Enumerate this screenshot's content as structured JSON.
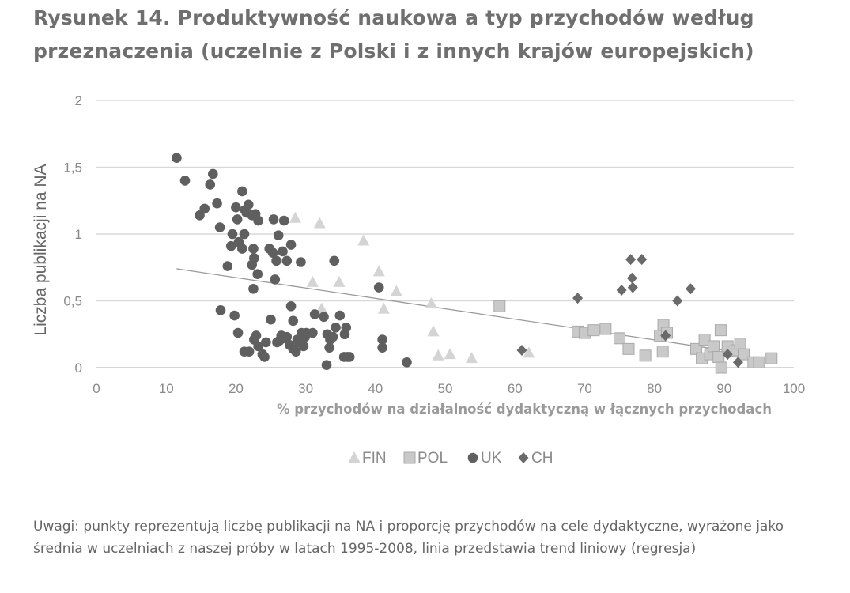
{
  "figure": {
    "title": "Rysunek 14. Produktywność naukowa a typ przychodów według przeznaczenia (uczelnie z Polski i z innych krajów europejskich)",
    "note": "Uwagi: punkty reprezentują liczbę publikacji na NA i proporcję przychodów na cele dydaktyczne, wyrażone jako średnia w uczelniach z naszej próby w latach 1995-2008, linia przedstawia trend liniowy (regresja)"
  },
  "chart_data": {
    "type": "scatter",
    "title": "",
    "xlabel": "% przychodów na działalność dydaktyczną w łącznych przychodach",
    "ylabel": "Liczba publikacji na NA",
    "xlim": [
      0,
      100
    ],
    "ylim": [
      0,
      2
    ],
    "xticks": [
      "0",
      "10",
      "20",
      "30",
      "40",
      "50",
      "60",
      "70",
      "80",
      "90",
      "100"
    ],
    "yticks": [
      "0",
      "0,5",
      "1",
      "1,5",
      "2"
    ],
    "grid": "horizontal",
    "legend_position": "bottom",
    "colors": {
      "FIN": "#d4d4d4",
      "POL": "#c9c9c9",
      "UK": "#5f5f5f",
      "CH": "#6a6a6a",
      "trend": "#9a9a9a",
      "grid": "#d9d9d9"
    },
    "series": [
      {
        "name": "FIN",
        "marker": "triangle",
        "points": [
          [
            28.5,
            1.12
          ],
          [
            32,
            1.08
          ],
          [
            38.3,
            0.95
          ],
          [
            40.5,
            0.72
          ],
          [
            43,
            0.57
          ],
          [
            41.2,
            0.44
          ],
          [
            31,
            0.64
          ],
          [
            34.8,
            0.64
          ],
          [
            32.3,
            0.44
          ],
          [
            48,
            0.48
          ],
          [
            48.3,
            0.27
          ],
          [
            49,
            0.09
          ],
          [
            50.7,
            0.1
          ],
          [
            53.8,
            0.07
          ],
          [
            62,
            0.11
          ]
        ]
      },
      {
        "name": "POL",
        "marker": "square",
        "points": [
          [
            57.8,
            0.46
          ],
          [
            69,
            0.27
          ],
          [
            70,
            0.26
          ],
          [
            71.3,
            0.28
          ],
          [
            73,
            0.29
          ],
          [
            75,
            0.22
          ],
          [
            76.3,
            0.14
          ],
          [
            78.7,
            0.09
          ],
          [
            80.8,
            0.24
          ],
          [
            81.3,
            0.32
          ],
          [
            81.8,
            0.26
          ],
          [
            81.2,
            0.12
          ],
          [
            86,
            0.14
          ],
          [
            86.8,
            0.07
          ],
          [
            87.2,
            0.21
          ],
          [
            88,
            0.1
          ],
          [
            88.5,
            0.16
          ],
          [
            89.2,
            0.08
          ],
          [
            89.5,
            0.28
          ],
          [
            89.6,
            0.0
          ],
          [
            90.5,
            0.16
          ],
          [
            91.2,
            0.12
          ],
          [
            91.8,
            0.13
          ],
          [
            92.3,
            0.18
          ],
          [
            92.8,
            0.1
          ],
          [
            94.2,
            0.04
          ],
          [
            95,
            0.04
          ],
          [
            96.8,
            0.07
          ]
        ]
      },
      {
        "name": "UK",
        "marker": "circle",
        "points": [
          [
            11.5,
            1.57
          ],
          [
            12.7,
            1.4
          ],
          [
            14.8,
            1.14
          ],
          [
            15.5,
            1.19
          ],
          [
            16.3,
            1.37
          ],
          [
            16.7,
            1.45
          ],
          [
            17.3,
            1.23
          ],
          [
            17.7,
            1.05
          ],
          [
            18.8,
            0.76
          ],
          [
            19.3,
            0.91
          ],
          [
            19.5,
            1.0
          ],
          [
            20.0,
            1.2
          ],
          [
            20.2,
            1.11
          ],
          [
            20.4,
            0.94
          ],
          [
            20.9,
            1.32
          ],
          [
            21.3,
            1.18
          ],
          [
            20.9,
            0.89
          ],
          [
            21.2,
            1.0
          ],
          [
            21.5,
            1.16
          ],
          [
            21.8,
            1.22
          ],
          [
            22.3,
            1.14
          ],
          [
            22.5,
            0.89
          ],
          [
            22.6,
            0.82
          ],
          [
            22.3,
            0.77
          ],
          [
            22.8,
            1.15
          ],
          [
            23.2,
            1.1
          ],
          [
            22.5,
            0.59
          ],
          [
            23.1,
            0.7
          ],
          [
            24.8,
            0.89
          ],
          [
            25.3,
            0.86
          ],
          [
            25.4,
            1.11
          ],
          [
            25.6,
            0.66
          ],
          [
            25.8,
            0.8
          ],
          [
            26.1,
            0.99
          ],
          [
            26.7,
            0.87
          ],
          [
            26.9,
            1.1
          ],
          [
            27.3,
            0.8
          ],
          [
            27.9,
            0.92
          ],
          [
            29.3,
            0.79
          ],
          [
            34.1,
            0.8
          ],
          [
            40.5,
            0.6
          ],
          [
            17.8,
            0.43
          ],
          [
            19.8,
            0.39
          ],
          [
            20.3,
            0.26
          ],
          [
            21.2,
            0.12
          ],
          [
            21.9,
            0.12
          ],
          [
            22.6,
            0.21
          ],
          [
            22.9,
            0.24
          ],
          [
            23.2,
            0.16
          ],
          [
            23.8,
            0.1
          ],
          [
            24.1,
            0.08
          ],
          [
            24.3,
            0.19
          ],
          [
            25.0,
            0.36
          ],
          [
            25.9,
            0.19
          ],
          [
            26.2,
            0.2
          ],
          [
            26.5,
            0.24
          ],
          [
            26.9,
            0.22
          ],
          [
            27.3,
            0.23
          ],
          [
            27.7,
            0.17
          ],
          [
            28.2,
            0.14
          ],
          [
            27.9,
            0.46
          ],
          [
            28.2,
            0.35
          ],
          [
            28.6,
            0.12
          ],
          [
            28.8,
            0.21
          ],
          [
            29.1,
            0.19
          ],
          [
            29.4,
            0.26
          ],
          [
            29.7,
            0.16
          ],
          [
            29.9,
            0.23
          ],
          [
            30.1,
            0.26
          ],
          [
            31.0,
            0.26
          ],
          [
            31.3,
            0.4
          ],
          [
            32.6,
            0.38
          ],
          [
            33.1,
            0.25
          ],
          [
            33.4,
            0.15
          ],
          [
            33.5,
            0.21
          ],
          [
            33.9,
            0.23
          ],
          [
            34.3,
            0.3
          ],
          [
            34.9,
            0.39
          ],
          [
            35.6,
            0.25
          ],
          [
            35.8,
            0.3
          ],
          [
            35.5,
            0.08
          ],
          [
            36.0,
            0.08
          ],
          [
            36.3,
            0.08
          ],
          [
            33.0,
            0.02
          ],
          [
            41.0,
            0.21
          ],
          [
            41.0,
            0.15
          ],
          [
            44.5,
            0.04
          ]
        ]
      },
      {
        "name": "CH",
        "marker": "diamond",
        "points": [
          [
            61,
            0.13
          ],
          [
            69,
            0.52
          ],
          [
            75.3,
            0.58
          ],
          [
            76.6,
            0.81
          ],
          [
            76.8,
            0.67
          ],
          [
            76.9,
            0.6
          ],
          [
            78.2,
            0.81
          ],
          [
            81.6,
            0.24
          ],
          [
            83.3,
            0.5
          ],
          [
            85.2,
            0.59
          ],
          [
            90.5,
            0.1
          ],
          [
            92,
            0.04
          ]
        ]
      }
    ],
    "trend": {
      "type": "linear",
      "x": [
        11.5,
        90
      ],
      "y": [
        0.74,
        0.13
      ]
    }
  }
}
